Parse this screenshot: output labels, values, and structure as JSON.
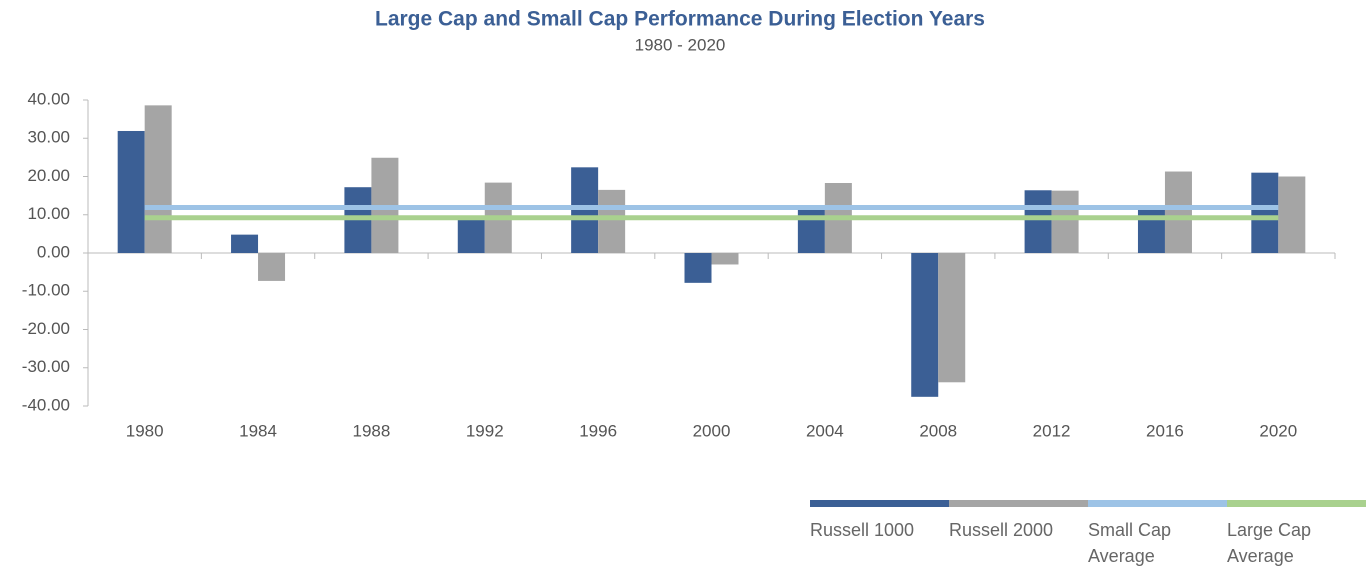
{
  "chart_data": {
    "type": "bar",
    "title": "Large Cap and Small Cap Performance During Election Years",
    "subtitle": "1980 - 2020",
    "categories": [
      "1980",
      "1984",
      "1988",
      "1992",
      "1996",
      "2000",
      "2004",
      "2008",
      "2012",
      "2016",
      "2020"
    ],
    "series": [
      {
        "name": "Russell 1000",
        "color": "#3b5f95",
        "type": "bar",
        "values": [
          31.9,
          4.8,
          17.2,
          9.0,
          22.4,
          -7.8,
          11.4,
          -37.6,
          16.4,
          12.1,
          21.0
        ]
      },
      {
        "name": "Russell 2000",
        "color": "#a5a5a5",
        "type": "bar",
        "values": [
          38.6,
          -7.3,
          24.9,
          18.4,
          16.5,
          -3.0,
          18.3,
          -33.8,
          16.3,
          21.3,
          20.0
        ]
      },
      {
        "name": "Small Cap Average",
        "color": "#9dc3e6",
        "type": "line",
        "values": [
          11.9,
          11.9,
          11.9,
          11.9,
          11.9,
          11.9,
          11.9,
          11.9,
          11.9,
          11.9,
          11.9
        ]
      },
      {
        "name": "Large Cap Average",
        "color": "#a9d18e",
        "type": "line",
        "values": [
          9.2,
          9.2,
          9.2,
          9.2,
          9.2,
          9.2,
          9.2,
          9.2,
          9.2,
          9.2,
          9.2
        ]
      }
    ],
    "ylim": [
      -40,
      40
    ],
    "yticks": [
      {
        "value": 40,
        "label": "40.00"
      },
      {
        "value": 30,
        "label": "30.00"
      },
      {
        "value": 20,
        "label": "20.00"
      },
      {
        "value": 10,
        "label": "10.00"
      },
      {
        "value": 0,
        "label": "0.00"
      },
      {
        "value": -10,
        "label": "-10.00"
      },
      {
        "value": -20,
        "label": "-20.00"
      },
      {
        "value": -30,
        "label": "-30.00"
      },
      {
        "value": -40,
        "label": "-40.00"
      }
    ],
    "legend": "bottom-right"
  }
}
